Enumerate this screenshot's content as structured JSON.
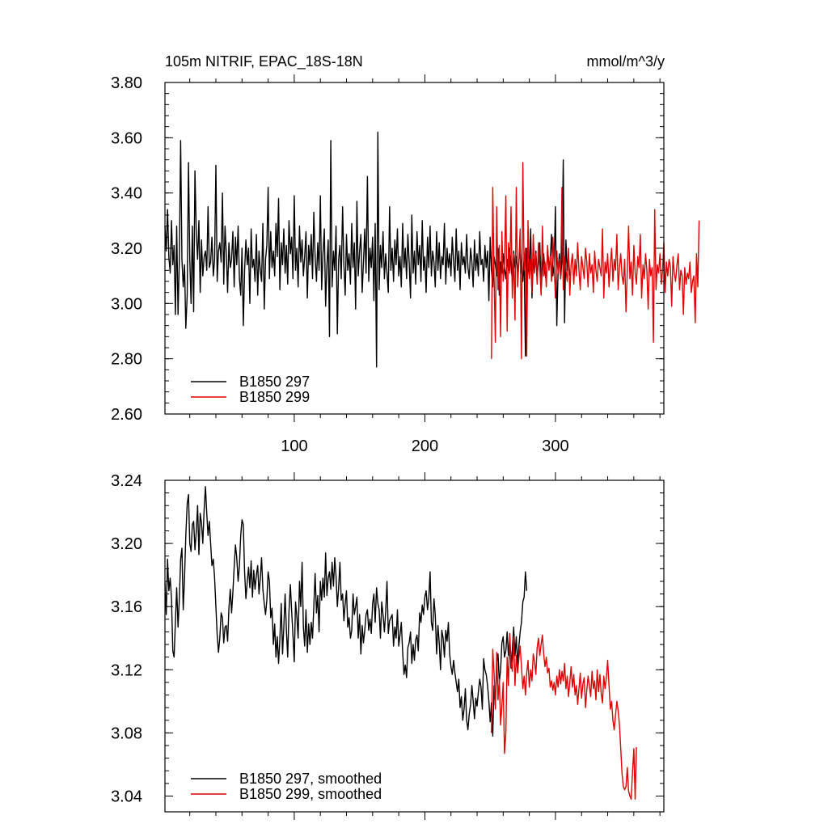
{
  "colors": {
    "run_297": "#000000",
    "run_299": "#e00000"
  },
  "chart_data": [
    {
      "type": "line",
      "title": "105m NITRIF, EPAC_18S-18N",
      "units": "mmol/m^3/y",
      "xlim": [
        1,
        383
      ],
      "ylim": [
        2.6,
        3.8
      ],
      "yticks": [
        "3.80",
        "3.60",
        "3.40",
        "3.20",
        "3.00",
        "2.80",
        "2.60"
      ],
      "xticks": [
        "100",
        "200",
        "300"
      ],
      "legend": [
        "B1850 297",
        "B1850 299"
      ],
      "series": [
        {
          "name": "B1850 297",
          "x_start": 1,
          "values": [
            3.28,
            3.19,
            3.34,
            3.17,
            3.11,
            3.3,
            3.14,
            3.21,
            2.96,
            3.28,
            2.96,
            3.16,
            3.59,
            3.16,
            3.06,
            3.14,
            2.91,
            3.03,
            3.51,
            3.16,
            3.0,
            3.28,
            2.97,
            3.48,
            3.25,
            3.16,
            3.3,
            3.04,
            3.23,
            3.1,
            3.17,
            3.19,
            3.12,
            3.35,
            3.13,
            3.15,
            3.24,
            3.1,
            3.16,
            3.5,
            3.08,
            3.19,
            3.22,
            3.15,
            3.4,
            3.07,
            3.28,
            3.18,
            3.04,
            3.22,
            3.13,
            3.16,
            3.26,
            3.06,
            3.24,
            3.14,
            3.28,
            3.09,
            3.03,
            3.2,
            2.92,
            3.12,
            3.23,
            3.14,
            3.2,
            3.0,
            3.27,
            3.13,
            3.16,
            3.08,
            3.25,
            3.03,
            3.19,
            3.12,
            3.08,
            3.29,
            2.98,
            3.16,
            3.21,
            3.42,
            3.09,
            3.26,
            3.13,
            3.19,
            3.1,
            3.29,
            3.17,
            3.38,
            3.05,
            3.22,
            3.14,
            3.27,
            3.11,
            3.21,
            3.07,
            3.3,
            3.18,
            3.24,
            3.09,
            3.39,
            3.12,
            3.2,
            3.06,
            3.28,
            3.15,
            3.23,
            3.1,
            3.17,
            3.26,
            3.02,
            3.21,
            3.14,
            3.25,
            3.09,
            3.33,
            3.17,
            3.08,
            3.22,
            3.12,
            3.39,
            3.05,
            3.18,
            3.27,
            2.99,
            3.14,
            3.23,
            2.88,
            3.59,
            3.06,
            3.19,
            3.12,
            3.28,
            2.89,
            3.16,
            3.21,
            3.09,
            3.35,
            3.14,
            3.03,
            3.25,
            3.12,
            3.18,
            3.07,
            3.29,
            3.13,
            3.22,
            2.98,
            3.37,
            3.1,
            3.19,
            3.25,
            3.04,
            3.15,
            3.27,
            3.11,
            3.46,
            3.08,
            3.2,
            3.13,
            3.24,
            3.01,
            3.29,
            2.77,
            3.62,
            3.05,
            3.21,
            3.13,
            3.26,
            3.09,
            3.18,
            3.11,
            3.04,
            3.35,
            3.12,
            3.2,
            3.08,
            3.23,
            3.14,
            3.27,
            3.1,
            3.17,
            3.06,
            3.29,
            3.13,
            3.2,
            3.09,
            3.25,
            3.15,
            3.02,
            3.32,
            3.11,
            3.19,
            3.07,
            3.26,
            3.14,
            3.21,
            3.08,
            3.3,
            3.12,
            3.17,
            3.04,
            3.24,
            3.13,
            3.28,
            3.1,
            3.19,
            3.15,
            3.06,
            3.26,
            3.12,
            3.22,
            3.09,
            3.17,
            3.14,
            3.29,
            3.07,
            3.2,
            3.13,
            3.18,
            3.1,
            3.24,
            3.15,
            3.08,
            3.27,
            3.12,
            3.19,
            3.05,
            3.22,
            3.14,
            3.17,
            3.11,
            3.25,
            3.13,
            3.09,
            3.2,
            3.15,
            3.06,
            3.23,
            3.12,
            3.18,
            3.1,
            3.26,
            3.14,
            3.16,
            3.08,
            3.21,
            3.13,
            3.19,
            3.01,
            3.24,
            3.12,
            3.06,
            3.17,
            3.14,
            3.1,
            3.2,
            3.03,
            3.15,
            3.11,
            3.18,
            3.13,
            3.09,
            3.16,
            3.12,
            3.2,
            3.14,
            3.08,
            3.19,
            3.13,
            3.17,
            3.11,
            3.15,
            3.21,
            3.12,
            3.08,
            3.17,
            2.81,
            3.2,
            3.13,
            3.1,
            3.27,
            3.02,
            3.16,
            3.12,
            3.19,
            3.09,
            3.15,
            3.22,
            3.04,
            3.14,
            3.18,
            3.11,
            3.08,
            3.2,
            3.13,
            3.16,
            3.25,
            3.1,
            3.14,
            3.35,
            2.92,
            3.12,
            3.18,
            3.09,
            3.16,
            3.52,
            2.93,
            3.23,
            3.12,
            3.17,
            3.1
          ]
        },
        {
          "name": "B1850 299",
          "x_start": 251,
          "values": [
            2.8,
            3.42,
            3.1,
            2.86,
            3.35,
            3.05,
            3.21,
            2.88,
            3.26,
            3.08,
            3.14,
            3.39,
            2.9,
            3.22,
            3.11,
            3.35,
            3.02,
            3.18,
            2.94,
            3.42,
            3.06,
            3.15,
            3.27,
            2.8,
            3.51,
            3.12,
            3.2,
            2.81,
            3.3,
            3.09,
            3.16,
            3.04,
            3.25,
            3.11,
            3.18,
            3.07,
            3.22,
            3.13,
            3.03,
            3.28,
            3.1,
            3.15,
            3.06,
            3.21,
            3.12,
            3.17,
            3.08,
            3.24,
            3.14,
            3.02,
            3.19,
            3.11,
            3.16,
            3.09,
            3.42,
            3.05,
            3.17,
            3.12,
            3.08,
            3.2,
            3.03,
            3.14,
            3.18,
            3.07,
            3.16,
            3.1,
            3.22,
            3.12,
            3.05,
            3.17,
            3.13,
            3.09,
            3.2,
            3.15,
            3.06,
            3.18,
            3.11,
            3.14,
            3.04,
            3.19,
            3.12,
            3.08,
            3.16,
            3.13,
            3.1,
            3.27,
            3.02,
            3.15,
            3.11,
            3.18,
            3.06,
            3.14,
            3.2,
            3.08,
            3.16,
            3.12,
            3.25,
            3.05,
            3.13,
            3.18,
            3.1,
            3.07,
            3.16,
            2.97,
            3.12,
            3.28,
            3.09,
            3.15,
            3.03,
            3.21,
            3.11,
            3.07,
            3.17,
            3.13,
            3.25,
            3.02,
            3.14,
            3.09,
            3.18,
            3.12,
            2.98,
            3.16,
            3.1,
            3.13,
            2.86,
            3.34,
            3.05,
            3.14,
            3.11,
            3.18,
            3.07,
            3.12,
            3.22,
            3.04,
            3.15,
            3.1,
            3.16,
            3.13,
            2.99,
            3.17,
            3.11,
            3.08,
            3.14,
            3.18,
            3.05,
            3.12,
            3.1,
            2.96,
            3.13,
            3.07,
            3.11,
            3.09,
            3.15,
            3.04,
            3.08,
            3.1,
            2.93,
            3.18,
            3.06,
            3.3
          ]
        }
      ]
    },
    {
      "type": "line",
      "ylim": [
        3.03,
        3.24
      ],
      "yticks": [
        "3.24",
        "3.20",
        "3.16",
        "3.12",
        "3.08",
        "3.04"
      ],
      "legend": [
        "B1850 297, smoothed",
        "B1850 299, smoothed"
      ],
      "series": [
        {
          "name": "B1850 297, smoothed",
          "x_start": 1,
          "values": [
            3.175,
            3.155,
            3.19,
            3.17,
            3.178,
            3.165,
            3.132,
            3.128,
            3.15,
            3.172,
            3.147,
            3.165,
            3.19,
            3.197,
            3.158,
            3.178,
            3.205,
            3.225,
            3.231,
            3.2,
            3.195,
            3.212,
            3.214,
            3.196,
            3.208,
            3.224,
            3.193,
            3.219,
            3.213,
            3.2,
            3.222,
            3.236,
            3.219,
            3.205,
            3.214,
            3.2,
            3.186,
            3.19,
            3.178,
            3.16,
            3.142,
            3.131,
            3.14,
            3.156,
            3.153,
            3.137,
            3.147,
            3.148,
            3.138,
            3.159,
            3.171,
            3.156,
            3.169,
            3.185,
            3.199,
            3.191,
            3.176,
            3.186,
            3.205,
            3.215,
            3.212,
            3.182,
            3.165,
            3.176,
            3.185,
            3.172,
            3.189,
            3.166,
            3.183,
            3.171,
            3.18,
            3.186,
            3.168,
            3.178,
            3.191,
            3.171,
            3.162,
            3.155,
            3.164,
            3.182,
            3.176,
            3.153,
            3.159,
            3.136,
            3.149,
            3.128,
            3.141,
            3.124,
            3.139,
            3.162,
            3.13,
            3.147,
            3.168,
            3.145,
            3.128,
            3.157,
            3.174,
            3.157,
            3.142,
            3.125,
            3.163,
            3.154,
            3.14,
            3.176,
            3.16,
            3.188,
            3.147,
            3.135,
            3.158,
            3.131,
            3.149,
            3.136,
            3.15,
            3.14,
            3.16,
            3.181,
            3.156,
            3.167,
            3.144,
            3.176,
            3.164,
            3.178,
            3.166,
            3.194,
            3.167,
            3.178,
            3.182,
            3.171,
            3.188,
            3.173,
            3.191,
            3.179,
            3.16,
            3.172,
            3.188,
            3.164,
            3.168,
            3.151,
            3.162,
            3.17,
            3.147,
            3.153,
            3.14,
            3.145,
            3.168,
            3.155,
            3.16,
            3.166,
            3.14,
            3.155,
            3.13,
            3.148,
            3.137,
            3.145,
            3.155,
            3.158,
            3.145,
            3.152,
            3.143,
            3.162,
            3.168,
            3.15,
            3.172,
            3.162,
            3.158,
            3.14,
            3.163,
            3.155,
            3.144,
            3.157,
            3.176,
            3.143,
            3.151,
            3.153,
            3.155,
            3.135,
            3.147,
            3.14,
            3.158,
            3.135,
            3.142,
            3.15,
            3.131,
            3.117,
            3.123,
            3.115,
            3.134,
            3.137,
            3.144,
            3.124,
            3.136,
            3.126,
            3.139,
            3.142,
            3.132,
            3.156,
            3.15,
            3.161,
            3.155,
            3.166,
            3.17,
            3.158,
            3.165,
            3.182,
            3.15,
            3.145,
            3.165,
            3.155,
            3.13,
            3.148,
            3.137,
            3.12,
            3.145,
            3.14,
            3.128,
            3.145,
            3.138,
            3.15,
            3.13,
            3.122,
            3.117,
            3.126,
            3.118,
            3.112,
            3.106,
            3.114,
            3.096,
            3.103,
            3.088,
            3.095,
            3.108,
            3.088,
            3.082,
            3.092,
            3.098,
            3.11,
            3.1,
            3.089,
            3.102,
            3.097,
            3.106,
            3.114,
            3.109,
            3.095,
            3.127,
            3.12,
            3.117,
            3.11,
            3.1,
            3.087,
            3.099,
            3.078,
            3.11,
            3.097,
            3.125,
            3.13,
            3.112,
            3.12,
            3.137,
            3.141,
            3.128,
            3.132,
            3.144,
            3.129,
            3.14,
            3.121,
            3.133,
            3.147,
            3.129,
            3.141,
            3.123,
            3.135,
            3.144,
            3.15,
            3.163,
            3.166,
            3.182,
            3.17
          ]
        },
        {
          "name": "B1850 299, smoothed",
          "x_start": 251,
          "values": [
            3.08,
            3.133,
            3.118,
            3.095,
            3.131,
            3.101,
            3.114,
            3.085,
            3.097,
            3.112,
            3.067,
            3.08,
            3.128,
            3.11,
            3.143,
            3.125,
            3.119,
            3.141,
            3.11,
            3.129,
            3.118,
            3.127,
            3.135,
            3.122,
            3.108,
            3.116,
            3.104,
            3.118,
            3.126,
            3.109,
            3.12,
            3.113,
            3.13,
            3.125,
            3.117,
            3.134,
            3.14,
            3.129,
            3.136,
            3.142,
            3.13,
            3.122,
            3.128,
            3.118,
            3.121,
            3.109,
            3.113,
            3.107,
            3.112,
            3.104,
            3.116,
            3.109,
            3.12,
            3.111,
            3.119,
            3.113,
            3.124,
            3.108,
            3.116,
            3.103,
            3.112,
            3.122,
            3.109,
            3.117,
            3.104,
            3.11,
            3.098,
            3.108,
            3.118,
            3.102,
            3.111,
            3.115,
            3.096,
            3.107,
            3.116,
            3.11,
            3.103,
            3.119,
            3.108,
            3.113,
            3.101,
            3.12,
            3.106,
            3.117,
            3.105,
            3.099,
            3.116,
            3.108,
            3.115,
            3.126,
            3.11,
            3.095,
            3.1,
            3.088,
            3.082,
            3.091,
            3.1,
            3.094,
            3.085,
            3.07,
            3.054,
            3.046,
            3.044,
            3.046,
            3.058,
            3.043,
            3.04,
            3.038,
            3.055,
            3.07,
            3.038,
            3.071
          ]
        }
      ]
    }
  ]
}
